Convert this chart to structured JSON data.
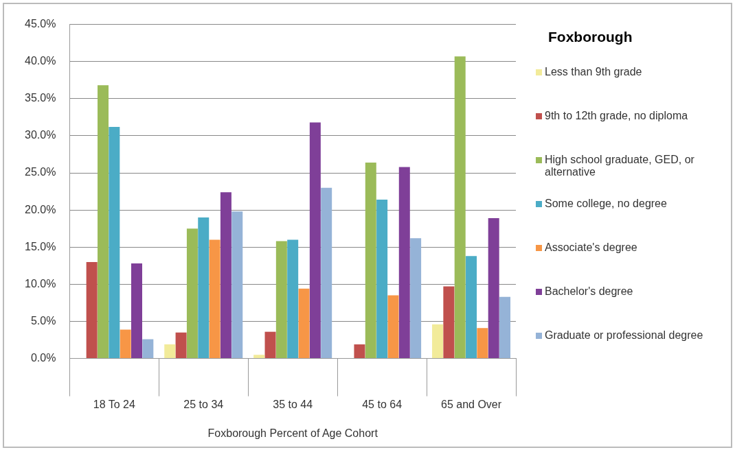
{
  "chart_data": {
    "type": "bar",
    "xlabel": "Foxborough Percent of Age Cohort",
    "legend_title": "Foxborough",
    "legend": "right",
    "grid": "y",
    "categories": [
      "18 To 24",
      "25 to 34",
      "35 to 44",
      "45 to 64",
      "65 and Over"
    ],
    "ylim": [
      0,
      45
    ],
    "yticks": [
      {
        "value": 0,
        "label": "0.0%"
      },
      {
        "value": 5,
        "label": "5.0%"
      },
      {
        "value": 10,
        "label": "10.0%"
      },
      {
        "value": 15,
        "label": "15.0%"
      },
      {
        "value": 20,
        "label": "20.0%"
      },
      {
        "value": 25,
        "label": "25.0%"
      },
      {
        "value": 30,
        "label": "30.0%"
      },
      {
        "value": 35,
        "label": "35.0%"
      },
      {
        "value": 40,
        "label": "40.0%"
      },
      {
        "value": 45,
        "label": "45.0%"
      }
    ],
    "series": [
      {
        "name": "Less than 9th grade",
        "color": "#f2eb9a",
        "values": [
          0,
          1.9,
          0.5,
          0,
          4.6
        ]
      },
      {
        "name": "9th to 12th grade, no diploma",
        "color": "#c0504d",
        "values": [
          13.0,
          3.5,
          3.6,
          1.9,
          9.7
        ]
      },
      {
        "name": "High school graduate, GED, or alternative",
        "color": "#9bbb59",
        "values": [
          36.8,
          17.5,
          15.8,
          26.4,
          40.7
        ]
      },
      {
        "name": "Some college, no degree",
        "color": "#4bacc6",
        "values": [
          31.2,
          19.0,
          16.0,
          21.4,
          13.8
        ]
      },
      {
        "name": "Associate's degree",
        "color": "#f79646",
        "values": [
          3.9,
          16.0,
          9.4,
          8.5,
          4.1
        ]
      },
      {
        "name": "Bachelor's degree",
        "color": "#7f3f98",
        "values": [
          12.8,
          22.4,
          31.8,
          25.8,
          18.9
        ]
      },
      {
        "name": "Graduate or professional degree",
        "color": "#95b3d7",
        "values": [
          2.6,
          19.8,
          23.0,
          16.2,
          8.3
        ]
      }
    ]
  }
}
